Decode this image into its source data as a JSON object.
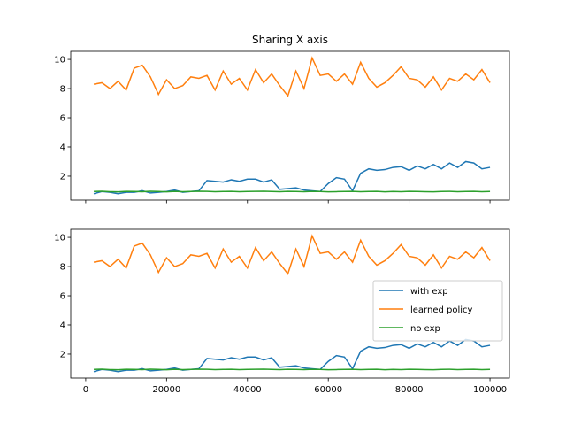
{
  "chart_data": [
    {
      "type": "line",
      "title": "Sharing X axis",
      "x": [
        2000,
        4000,
        6000,
        8000,
        10000,
        12000,
        14000,
        16000,
        18000,
        20000,
        22000,
        24000,
        26000,
        28000,
        30000,
        32000,
        34000,
        36000,
        38000,
        40000,
        42000,
        44000,
        46000,
        48000,
        50000,
        52000,
        54000,
        56000,
        58000,
        60000,
        62000,
        64000,
        66000,
        68000,
        70000,
        72000,
        74000,
        76000,
        78000,
        80000,
        82000,
        84000,
        86000,
        88000,
        90000,
        92000,
        94000,
        96000,
        98000,
        100000
      ],
      "series": [
        {
          "name": "with exp",
          "color": "#1f77b4",
          "values": [
            0.8,
            0.95,
            0.9,
            0.8,
            0.9,
            0.9,
            1.0,
            0.85,
            0.9,
            0.95,
            1.05,
            0.9,
            0.95,
            1.0,
            1.7,
            1.65,
            1.6,
            1.75,
            1.65,
            1.8,
            1.8,
            1.6,
            1.75,
            1.1,
            1.15,
            1.2,
            1.05,
            1.0,
            0.95,
            1.5,
            1.9,
            1.8,
            1.0,
            2.2,
            2.5,
            2.4,
            2.45,
            2.6,
            2.65,
            2.4,
            2.7,
            2.5,
            2.8,
            2.5,
            2.9,
            2.6,
            3.0,
            2.9,
            2.5,
            2.6
          ]
        },
        {
          "name": "learned policy",
          "color": "#ff7f0e",
          "values": [
            8.3,
            8.4,
            8.0,
            8.5,
            7.9,
            9.4,
            9.6,
            8.8,
            7.6,
            8.6,
            8.0,
            8.2,
            8.8,
            8.7,
            8.9,
            7.9,
            9.2,
            8.3,
            8.7,
            7.9,
            9.3,
            8.4,
            9.0,
            8.2,
            7.5,
            9.2,
            8.0,
            10.1,
            8.9,
            9.0,
            8.5,
            9.0,
            8.3,
            9.8,
            8.7,
            8.1,
            8.4,
            8.9,
            9.5,
            8.7,
            8.6,
            8.1,
            8.8,
            7.9,
            8.7,
            8.5,
            9.0,
            8.6,
            9.3,
            8.4
          ]
        },
        {
          "name": "no exp",
          "color": "#2ca02c",
          "values": [
            0.95,
            0.97,
            0.94,
            0.93,
            0.96,
            0.95,
            0.94,
            0.97,
            0.95,
            0.93,
            0.96,
            0.94,
            0.95,
            0.97,
            0.96,
            0.94,
            0.95,
            0.96,
            0.94,
            0.95,
            0.96,
            0.97,
            0.95,
            0.94,
            0.96,
            0.95,
            0.94,
            0.96,
            0.95,
            0.93,
            0.94,
            0.95,
            0.96,
            0.94,
            0.95,
            0.96,
            0.93,
            0.95,
            0.94,
            0.96,
            0.95,
            0.94,
            0.93,
            0.95,
            0.96,
            0.94,
            0.95,
            0.96,
            0.94,
            0.95
          ]
        }
      ],
      "xlim": [
        -3700,
        104800
      ],
      "xticks": [
        0,
        20000,
        40000,
        60000,
        80000,
        100000
      ],
      "show_xticklabels": false,
      "ylim": [
        0.36,
        10.55
      ],
      "yticks": [
        2,
        4,
        6,
        8,
        10
      ]
    },
    {
      "type": "line",
      "x": [
        2000,
        4000,
        6000,
        8000,
        10000,
        12000,
        14000,
        16000,
        18000,
        20000,
        22000,
        24000,
        26000,
        28000,
        30000,
        32000,
        34000,
        36000,
        38000,
        40000,
        42000,
        44000,
        46000,
        48000,
        50000,
        52000,
        54000,
        56000,
        58000,
        60000,
        62000,
        64000,
        66000,
        68000,
        70000,
        72000,
        74000,
        76000,
        78000,
        80000,
        82000,
        84000,
        86000,
        88000,
        90000,
        92000,
        94000,
        96000,
        98000,
        100000
      ],
      "series": [
        {
          "name": "with exp",
          "color": "#1f77b4",
          "values": [
            0.8,
            0.95,
            0.9,
            0.8,
            0.9,
            0.9,
            1.0,
            0.85,
            0.9,
            0.95,
            1.05,
            0.9,
            0.95,
            1.0,
            1.7,
            1.65,
            1.6,
            1.75,
            1.65,
            1.8,
            1.8,
            1.6,
            1.75,
            1.1,
            1.15,
            1.2,
            1.05,
            1.0,
            0.95,
            1.5,
            1.9,
            1.8,
            1.0,
            2.2,
            2.5,
            2.4,
            2.45,
            2.6,
            2.65,
            2.4,
            2.7,
            2.5,
            2.8,
            2.5,
            2.9,
            2.6,
            3.0,
            2.9,
            2.5,
            2.6
          ]
        },
        {
          "name": "learned policy",
          "color": "#ff7f0e",
          "values": [
            8.3,
            8.4,
            8.0,
            8.5,
            7.9,
            9.4,
            9.6,
            8.8,
            7.6,
            8.6,
            8.0,
            8.2,
            8.8,
            8.7,
            8.9,
            7.9,
            9.2,
            8.3,
            8.7,
            7.9,
            9.3,
            8.4,
            9.0,
            8.2,
            7.5,
            9.2,
            8.0,
            10.1,
            8.9,
            9.0,
            8.5,
            9.0,
            8.3,
            9.8,
            8.7,
            8.1,
            8.4,
            8.9,
            9.5,
            8.7,
            8.6,
            8.1,
            8.8,
            7.9,
            8.7,
            8.5,
            9.0,
            8.6,
            9.3,
            8.4
          ]
        },
        {
          "name": "no exp",
          "color": "#2ca02c",
          "values": [
            0.95,
            0.97,
            0.94,
            0.93,
            0.96,
            0.95,
            0.94,
            0.97,
            0.95,
            0.93,
            0.96,
            0.94,
            0.95,
            0.97,
            0.96,
            0.94,
            0.95,
            0.96,
            0.94,
            0.95,
            0.96,
            0.97,
            0.95,
            0.94,
            0.96,
            0.95,
            0.94,
            0.96,
            0.95,
            0.93,
            0.94,
            0.95,
            0.96,
            0.94,
            0.95,
            0.96,
            0.93,
            0.95,
            0.94,
            0.96,
            0.95,
            0.94,
            0.93,
            0.95,
            0.96,
            0.94,
            0.95,
            0.96,
            0.94,
            0.95
          ]
        }
      ],
      "xlim": [
        -3700,
        104800
      ],
      "xticks": [
        0,
        20000,
        40000,
        60000,
        80000,
        100000
      ],
      "show_xticklabels": true,
      "ylim": [
        0.36,
        10.55
      ],
      "yticks": [
        2,
        4,
        6,
        8,
        10
      ],
      "legend": "center right"
    }
  ]
}
